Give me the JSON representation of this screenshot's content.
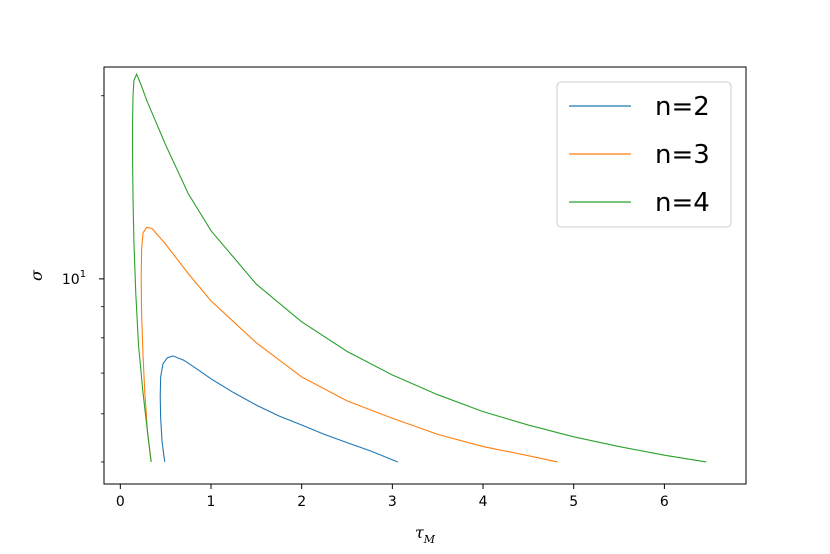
{
  "chart_data": {
    "type": "line",
    "xlabel": "τ",
    "xlabel_sub": "M",
    "ylabel": "σ",
    "y_scale": "log",
    "xlim": [
      -0.18,
      6.9
    ],
    "ylim": [
      4.6,
      22.3
    ],
    "grid": false,
    "legend_position": "top-right",
    "x_ticks": [
      {
        "value": 0,
        "label": "0"
      },
      {
        "value": 1,
        "label": "1"
      },
      {
        "value": 2,
        "label": "2"
      },
      {
        "value": 3,
        "label": "3"
      },
      {
        "value": 4,
        "label": "4"
      },
      {
        "value": 5,
        "label": "5"
      },
      {
        "value": 6,
        "label": "6"
      }
    ],
    "y_major_ticks": [
      {
        "value": 10,
        "label_base": "10",
        "label_exp": "1"
      }
    ],
    "y_minor_ticks": [
      5,
      6,
      7,
      8,
      9,
      20
    ],
    "series": [
      {
        "name": "n=2",
        "color": "#1f77b4",
        "points": [
          [
            0.49,
            5.0
          ],
          [
            0.46,
            5.4
          ],
          [
            0.445,
            5.9
          ],
          [
            0.44,
            6.4
          ],
          [
            0.445,
            6.9
          ],
          [
            0.47,
            7.25
          ],
          [
            0.52,
            7.42
          ],
          [
            0.58,
            7.47
          ],
          [
            0.7,
            7.35
          ],
          [
            0.85,
            7.1
          ],
          [
            1.0,
            6.85
          ],
          [
            1.25,
            6.5
          ],
          [
            1.5,
            6.2
          ],
          [
            1.75,
            5.95
          ],
          [
            2.0,
            5.75
          ],
          [
            2.25,
            5.55
          ],
          [
            2.5,
            5.38
          ],
          [
            2.75,
            5.22
          ],
          [
            3.06,
            5.0
          ]
        ]
      },
      {
        "name": "n=3",
        "color": "#ff7f0e",
        "points": [
          [
            0.34,
            5.0
          ],
          [
            0.3,
            5.6
          ],
          [
            0.27,
            6.5
          ],
          [
            0.25,
            7.5
          ],
          [
            0.235,
            8.7
          ],
          [
            0.23,
            10.0
          ],
          [
            0.235,
            11.2
          ],
          [
            0.25,
            11.9
          ],
          [
            0.29,
            12.15
          ],
          [
            0.35,
            12.1
          ],
          [
            0.5,
            11.4
          ],
          [
            0.75,
            10.2
          ],
          [
            1.0,
            9.2
          ],
          [
            1.25,
            8.5
          ],
          [
            1.5,
            7.85
          ],
          [
            2.0,
            6.9
          ],
          [
            2.5,
            6.3
          ],
          [
            3.0,
            5.9
          ],
          [
            3.5,
            5.55
          ],
          [
            4.0,
            5.3
          ],
          [
            4.5,
            5.12
          ],
          [
            4.82,
            5.0
          ]
        ]
      },
      {
        "name": "n=4",
        "color": "#2ca02c",
        "points": [
          [
            0.34,
            5.0
          ],
          [
            0.3,
            5.6
          ],
          [
            0.25,
            6.5
          ],
          [
            0.2,
            7.8
          ],
          [
            0.17,
            9.5
          ],
          [
            0.15,
            11.5
          ],
          [
            0.14,
            13.5
          ],
          [
            0.135,
            16.0
          ],
          [
            0.135,
            18.0
          ],
          [
            0.14,
            20.0
          ],
          [
            0.15,
            21.2
          ],
          [
            0.18,
            21.7
          ],
          [
            0.22,
            21.0
          ],
          [
            0.3,
            19.5
          ],
          [
            0.4,
            18.0
          ],
          [
            0.5,
            16.6
          ],
          [
            0.75,
            13.8
          ],
          [
            1.0,
            12.0
          ],
          [
            1.5,
            9.8
          ],
          [
            2.0,
            8.5
          ],
          [
            2.5,
            7.6
          ],
          [
            3.0,
            6.95
          ],
          [
            3.5,
            6.45
          ],
          [
            4.0,
            6.05
          ],
          [
            4.5,
            5.75
          ],
          [
            5.0,
            5.5
          ],
          [
            5.5,
            5.3
          ],
          [
            6.0,
            5.13
          ],
          [
            6.46,
            5.0
          ]
        ]
      }
    ]
  }
}
